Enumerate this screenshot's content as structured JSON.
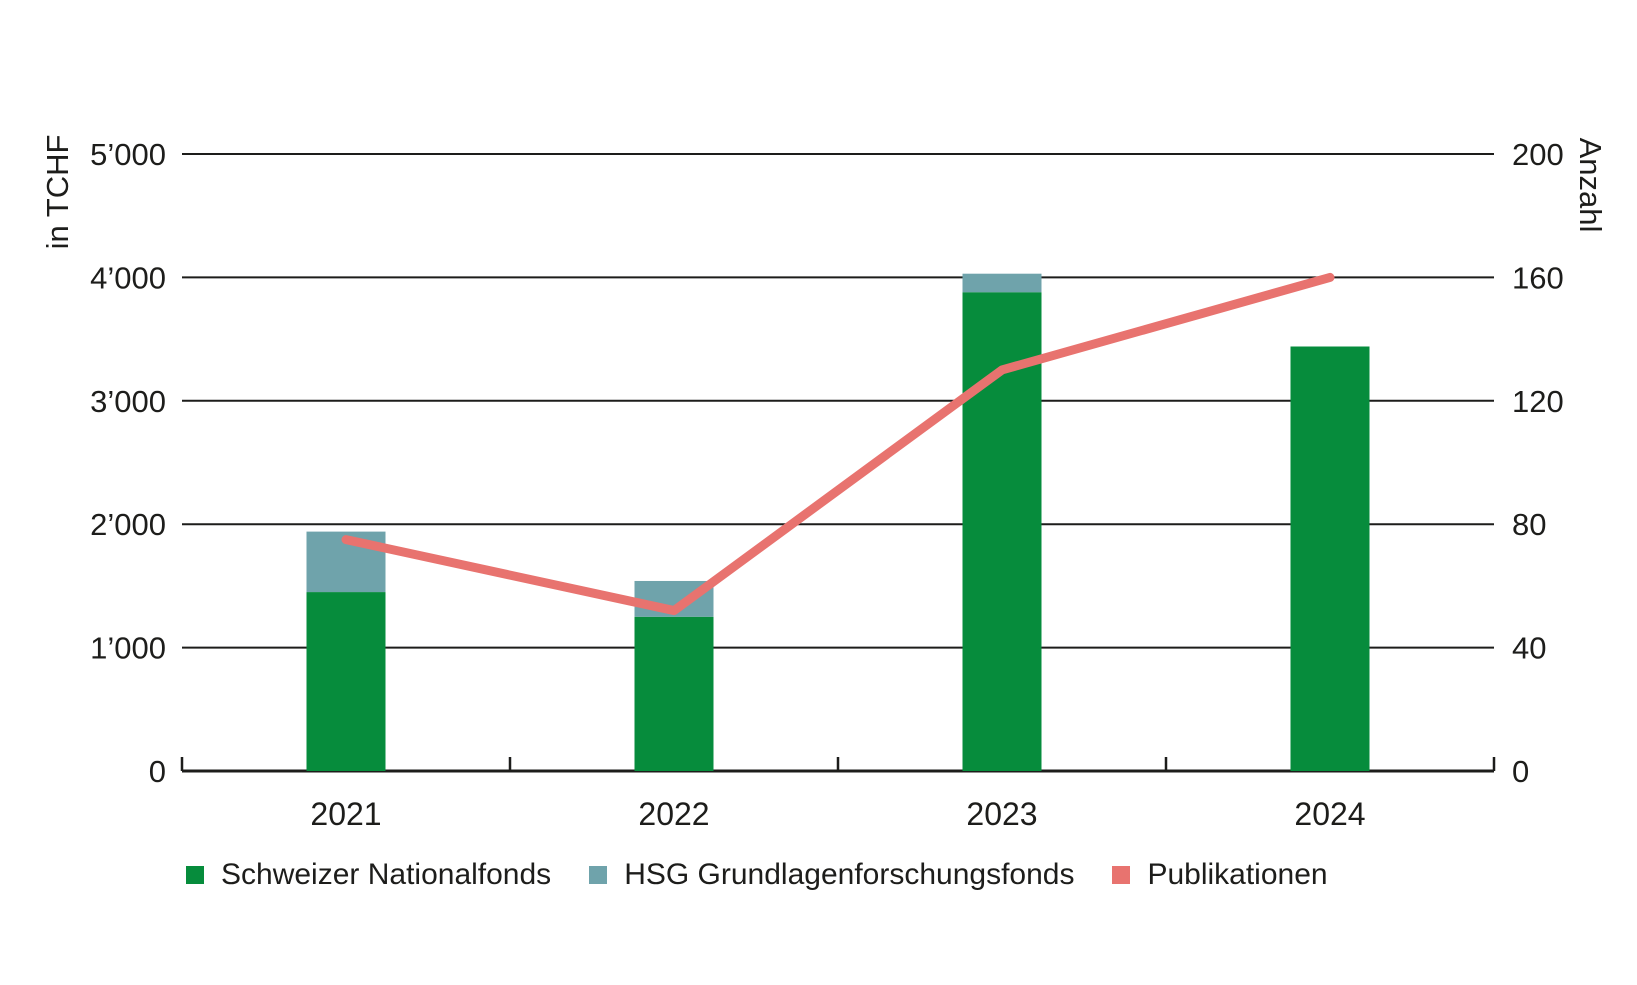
{
  "colors": {
    "snf_green": "#068c3c",
    "hsg_teal": "#6fa3ab",
    "pub_red": "#e8736f",
    "text": "#1d1d1b",
    "grid": "#1d1d1b",
    "background": "#ffffff"
  },
  "chart_data": {
    "type": "bar",
    "subtype": "stacked-bars-with-line",
    "categories": [
      "2021",
      "2022",
      "2023",
      "2024"
    ],
    "series": [
      {
        "name": "Schweizer Nationalfonds",
        "type": "bar",
        "stack": "funds",
        "axis": "left",
        "color": "#068c3c",
        "values": [
          1450,
          1250,
          3880,
          3440
        ]
      },
      {
        "name": "HSG Grundlagenforschungsfonds",
        "type": "bar",
        "stack": "funds",
        "axis": "left",
        "color": "#6fa3ab",
        "values": [
          490,
          290,
          150,
          0
        ]
      },
      {
        "name": "Publikationen",
        "type": "line",
        "axis": "right",
        "color": "#e8736f",
        "values": [
          75,
          52,
          130,
          160
        ]
      }
    ],
    "left_axis": {
      "label": "in TCHF",
      "min": 0,
      "max": 5000,
      "tick_values": [
        0,
        1000,
        2000,
        3000,
        4000,
        5000
      ],
      "tick_labels": [
        "0",
        "1’000",
        "2’000",
        "3’000",
        "4’000",
        "5’000"
      ]
    },
    "right_axis": {
      "label": "Anzahl",
      "min": 0,
      "max": 200,
      "tick_values": [
        0,
        40,
        80,
        120,
        160,
        200
      ],
      "tick_labels": [
        "0",
        "40",
        "80",
        "120",
        "160",
        "200"
      ]
    },
    "grid": true,
    "legend_position": "bottom",
    "title": ""
  },
  "legend": {
    "items": [
      {
        "label": "Schweizer Nationalfonds",
        "color": "#068c3c"
      },
      {
        "label": "HSG Grundlagenforschungsfonds",
        "color": "#6fa3ab"
      },
      {
        "label": "Publikationen",
        "color": "#e8736f"
      }
    ]
  }
}
